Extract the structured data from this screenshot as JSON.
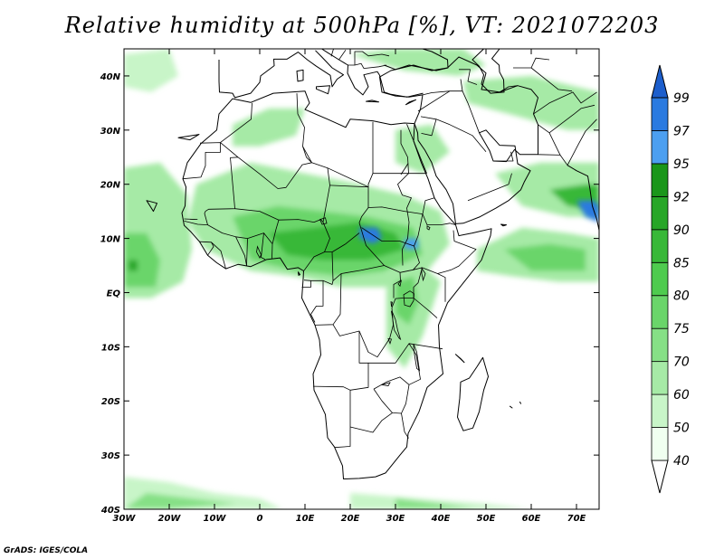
{
  "title": "Relative humidity at 500hPa [%], VT: 2021072203",
  "credit": "GrADS: IGES/COLA",
  "map": {
    "region": "Africa",
    "projection": "lat-lon",
    "lon_range": [
      -30,
      75
    ],
    "lat_range": [
      -40,
      45
    ],
    "background": "#ffffff",
    "coastline_color": "#000000",
    "lat_ticks": [
      "40N",
      "30N",
      "20N",
      "10N",
      "EQ",
      "10S",
      "20S",
      "30S",
      "40S"
    ],
    "lon_ticks": [
      "30W",
      "20W",
      "10W",
      "0",
      "10E",
      "20E",
      "30E",
      "40E",
      "50E",
      "60E",
      "70E"
    ]
  },
  "colorbar": {
    "levels": [
      "40",
      "50",
      "60",
      "70",
      "75",
      "80",
      "85",
      "90",
      "92",
      "95",
      "97",
      "99"
    ],
    "colors": [
      "#f0fff0",
      "#c8f5c8",
      "#a6eaa6",
      "#86e086",
      "#6ad56a",
      "#4fcb4f",
      "#38b838",
      "#27a627",
      "#1a961a",
      "#4c9ff0",
      "#2a7ae0",
      "#1c5ecc"
    ],
    "extend": "both"
  },
  "humidity_areas": [
    {
      "name": "west-atlantic-humid",
      "level": 75
    },
    {
      "name": "sahel-band-humid",
      "level": 85
    },
    {
      "name": "sudan-core",
      "level": 97
    },
    {
      "name": "east-africa-humid",
      "level": 80
    },
    {
      "name": "arabian-sea-humid",
      "level": 80
    },
    {
      "name": "india-west-coast-core",
      "level": 97
    },
    {
      "name": "southern-ocean-band",
      "level": 70
    }
  ]
}
